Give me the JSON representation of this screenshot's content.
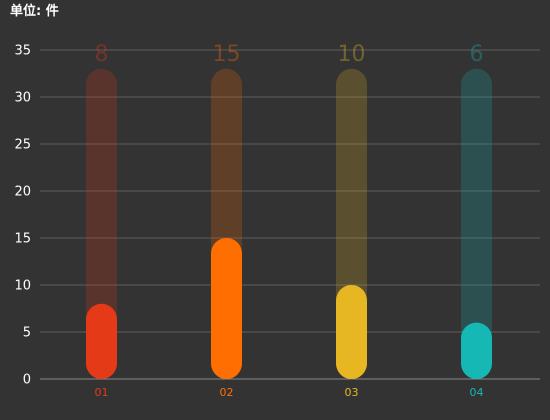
{
  "unit_label": "单位: 件",
  "chart_data": {
    "type": "bar",
    "categories": [
      "01",
      "02",
      "03",
      "04"
    ],
    "values": [
      8,
      15,
      10,
      6
    ],
    "colors": [
      "#e53a17",
      "#ff6e00",
      "#e6b722",
      "#16b8b6"
    ],
    "background_max": 33,
    "yticks": [
      0,
      5,
      10,
      15,
      20,
      25,
      30,
      35
    ],
    "ylim": [
      0,
      35
    ],
    "grid": true,
    "title": "",
    "xlabel": "",
    "ylabel": ""
  }
}
